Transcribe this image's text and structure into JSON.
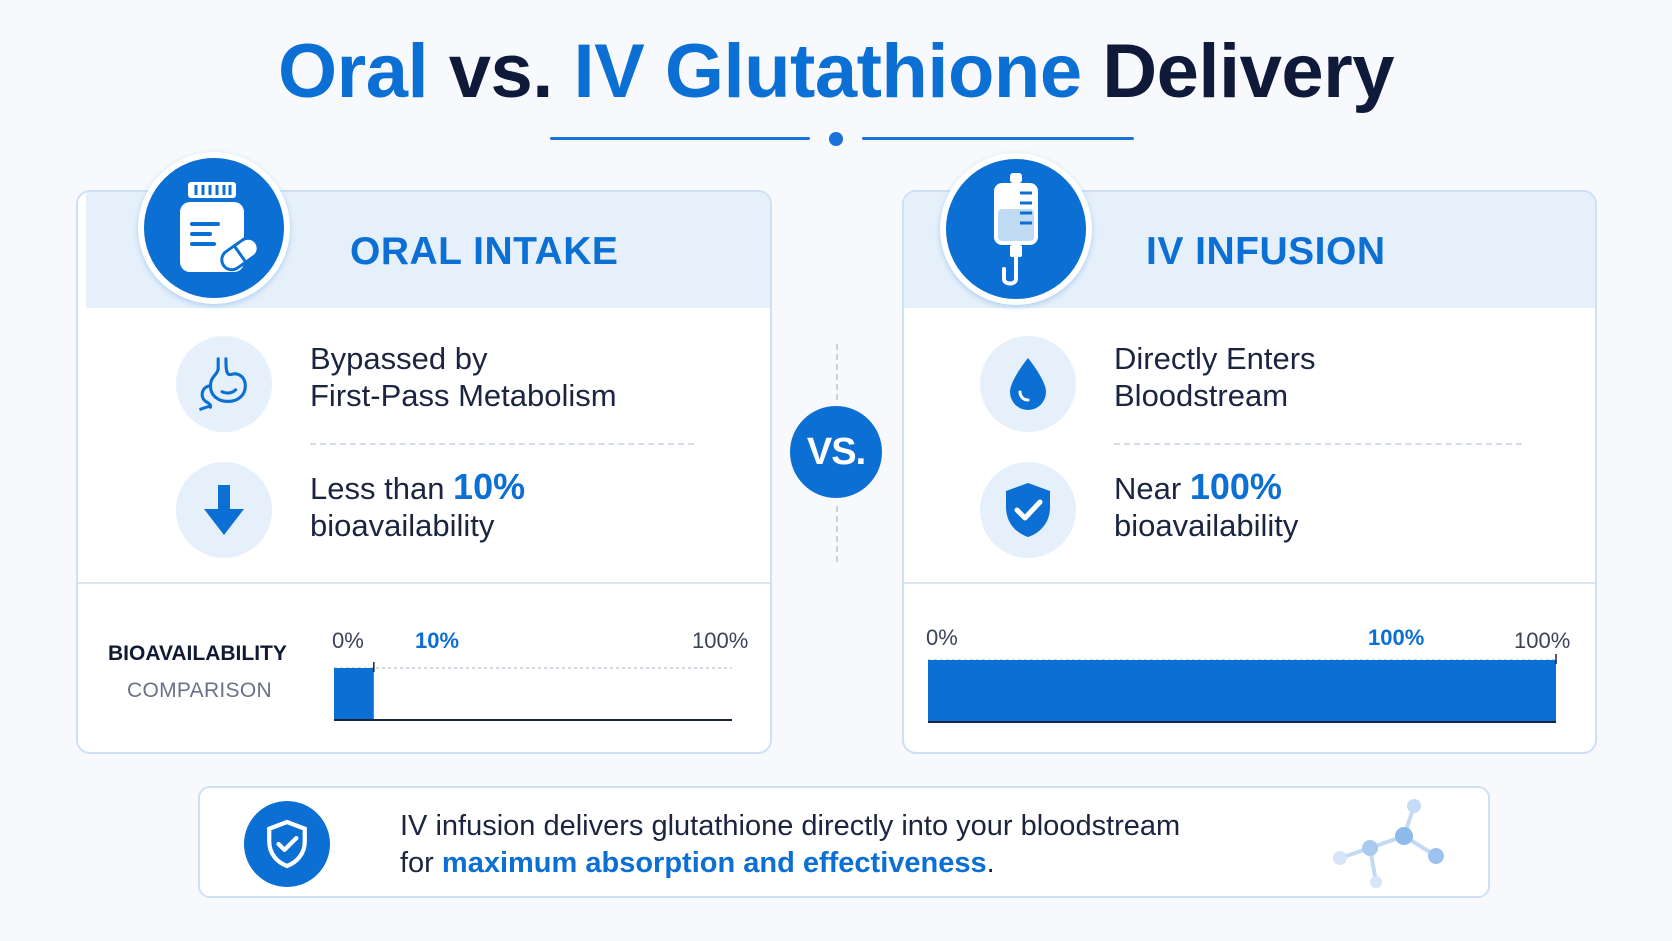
{
  "title": {
    "part1": "Oral",
    "part2": " vs. ",
    "part3": "IV Glutathione",
    "part4": " Delivery"
  },
  "colors": {
    "accent": "#0b6fd3",
    "dark": "#0f1a3a",
    "panel_head": "#e6f0fb",
    "border": "#cfe0f4"
  },
  "oral": {
    "header": "ORAL INTAKE",
    "icon": "pill-bottle-icon",
    "feature1": {
      "icon": "stomach-icon",
      "line1": "Bypassed by",
      "line2": "First-Pass Metabolism"
    },
    "feature2": {
      "icon": "down-arrow-icon",
      "prefix": "Less than ",
      "highlight": "10%",
      "line2": "bioavailability"
    },
    "chart": {
      "label_title": "BIOAVAILABILITY",
      "label_sub": "COMPARISON",
      "tick_min": "0%",
      "tick_value": "10%",
      "tick_max": "100%"
    }
  },
  "vs_label": "VS.",
  "iv": {
    "header": "IV INFUSION",
    "icon": "iv-bag-icon",
    "feature1": {
      "icon": "droplet-icon",
      "line1": "Directly Enters",
      "line2": "Bloodstream"
    },
    "feature2": {
      "icon": "shield-check-icon",
      "prefix": "Near ",
      "highlight": "100%",
      "line2": "bioavailability"
    },
    "chart": {
      "tick_min": "0%",
      "tick_value": "100%",
      "tick_max": "100%"
    }
  },
  "chart_data": [
    {
      "type": "bar",
      "categories": [
        "Oral"
      ],
      "values": [
        10
      ],
      "ylim": [
        0,
        100
      ],
      "title": "BIOAVAILABILITY COMPARISON",
      "xlabel": "",
      "ylabel": ""
    },
    {
      "type": "bar",
      "categories": [
        "IV"
      ],
      "values": [
        100
      ],
      "ylim": [
        0,
        100
      ],
      "title": "",
      "xlabel": "",
      "ylabel": ""
    }
  ],
  "banner": {
    "icon": "shield-check-icon",
    "line1": "IV infusion delivers glutathione directly into your bloodstream",
    "prefix": "for ",
    "highlight": "maximum absorption and effectiveness",
    "suffix": ".",
    "decor_icon": "molecule-icon"
  }
}
